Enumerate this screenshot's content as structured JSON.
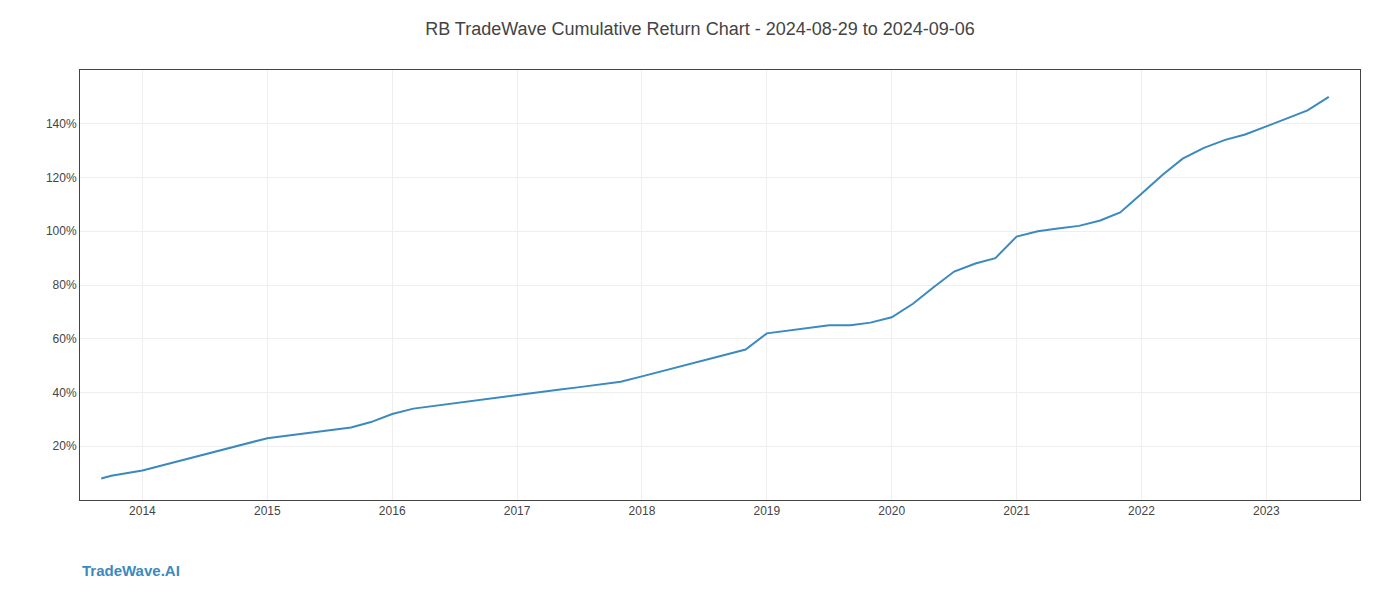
{
  "chart_data": {
    "type": "line",
    "title": "RB TradeWave Cumulative Return Chart - 2024-08-29 to 2024-09-06",
    "annotations": [
      "TradeWave.AI"
    ],
    "color": "#3a8abf",
    "x": [
      2013.67,
      2013.75,
      2014.0,
      2014.17,
      2014.33,
      2014.5,
      2014.67,
      2014.83,
      2015.0,
      2015.17,
      2015.33,
      2015.5,
      2015.67,
      2015.83,
      2016.0,
      2016.17,
      2016.33,
      2016.5,
      2016.67,
      2016.83,
      2017.0,
      2017.17,
      2017.33,
      2017.5,
      2017.67,
      2017.83,
      2018.0,
      2018.17,
      2018.33,
      2018.5,
      2018.67,
      2018.83,
      2019.0,
      2019.17,
      2019.33,
      2019.5,
      2019.67,
      2019.83,
      2020.0,
      2020.17,
      2020.33,
      2020.5,
      2020.67,
      2020.83,
      2021.0,
      2021.17,
      2021.33,
      2021.5,
      2021.67,
      2021.83,
      2022.0,
      2022.17,
      2022.33,
      2022.5,
      2022.67,
      2022.83,
      2023.0,
      2023.17,
      2023.33,
      2023.5
    ],
    "values": [
      8,
      9,
      11,
      13,
      15,
      17,
      19,
      21,
      23,
      24,
      25,
      26,
      27,
      29,
      32,
      34,
      35,
      36,
      37,
      38,
      39,
      40,
      41,
      42,
      43,
      44,
      46,
      48,
      50,
      52,
      54,
      56,
      62,
      63,
      64,
      65,
      65,
      66,
      68,
      73,
      79,
      85,
      88,
      90,
      98,
      100,
      101,
      102,
      104,
      107,
      114,
      121,
      127,
      131,
      134,
      136,
      139,
      142,
      145,
      150
    ],
    "xlim": [
      2013.5,
      2023.75
    ],
    "xticks": [
      2014,
      2015,
      2016,
      2017,
      2018,
      2019,
      2020,
      2021,
      2022,
      2023
    ],
    "ylim": [
      0,
      160
    ],
    "yticks": [
      {
        "value": 20,
        "label": "20%"
      },
      {
        "value": 40,
        "label": "40%"
      },
      {
        "value": 60,
        "label": "60%"
      },
      {
        "value": 80,
        "label": "80%"
      },
      {
        "value": 100,
        "label": "100%"
      },
      {
        "value": 120,
        "label": "120%"
      },
      {
        "value": 140,
        "label": "140%"
      }
    ],
    "grid": true
  }
}
